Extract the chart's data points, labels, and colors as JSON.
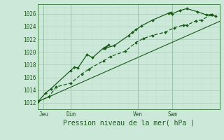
{
  "bg_color": "#cce8d8",
  "grid_major_color": "#aaccbb",
  "grid_minor_color": "#c0dece",
  "line_color": "#1a5c1a",
  "marker_color": "#1a5c1a",
  "title": "Pression niveau de la mer( hPa )",
  "ylim": [
    1011.0,
    1027.5
  ],
  "yticks": [
    1012,
    1014,
    1016,
    1018,
    1020,
    1022,
    1024,
    1026
  ],
  "xlim": [
    0,
    100
  ],
  "day_labels": [
    "Jeu",
    "Dim",
    "Ven",
    "Sam"
  ],
  "day_positions": [
    3,
    18,
    55,
    74
  ],
  "day_vlines": [
    3,
    18,
    55,
    74
  ],
  "series1_x": [
    0,
    4,
    7,
    18,
    20,
    22,
    27,
    30,
    36,
    39,
    37,
    42,
    50,
    52,
    54,
    57,
    63,
    72,
    73,
    74,
    78,
    82,
    88,
    93,
    96
  ],
  "series1_y": [
    1012.2,
    1013.5,
    1014.2,
    1017.1,
    1017.6,
    1017.5,
    1019.6,
    1019.1,
    1020.6,
    1021.1,
    1020.6,
    1021.0,
    1022.6,
    1023.1,
    1023.5,
    1024.1,
    1025.0,
    1026.1,
    1026.2,
    1026.0,
    1026.5,
    1026.8,
    1026.3,
    1025.8,
    1025.9
  ],
  "series2_x": [
    0,
    6,
    10,
    18,
    24,
    28,
    36,
    40,
    48,
    54,
    58,
    63,
    70,
    75,
    80,
    82,
    87,
    90,
    95,
    98
  ],
  "series2_y": [
    1012.2,
    1013.0,
    1014.5,
    1015.1,
    1016.5,
    1017.3,
    1018.6,
    1019.3,
    1020.1,
    1021.5,
    1022.1,
    1022.6,
    1023.1,
    1023.8,
    1024.2,
    1024.2,
    1024.9,
    1025.0,
    1025.8,
    1025.6
  ],
  "trend_x": [
    0,
    100
  ],
  "trend_y": [
    1012.2,
    1024.8
  ],
  "spine_color": "#3a7a3a",
  "tick_fontsize": 5.5,
  "label_fontsize": 7.5,
  "xlabel_fontsize": 7
}
